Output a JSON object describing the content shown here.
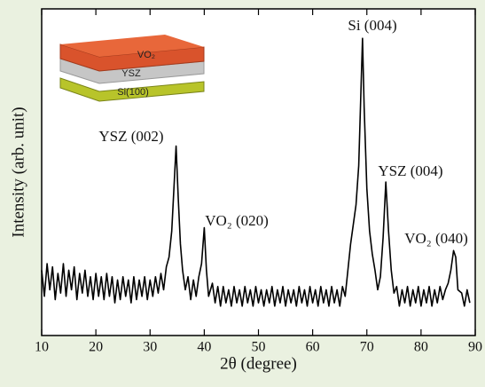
{
  "chart_data": {
    "type": "line",
    "xlabel": "2θ (degree)",
    "ylabel": "Intensity (arb. unit)",
    "xlim": [
      10,
      90
    ],
    "xticks": [
      10,
      20,
      30,
      40,
      50,
      60,
      70,
      80,
      90
    ],
    "ylim": [
      0,
      100
    ],
    "color": "#000000",
    "annotations": [
      "YSZ (002)",
      "VO₂ (020)",
      "Si (004)",
      "YSZ (004)",
      "VO₂ (040)"
    ],
    "inset": {
      "layers": [
        "VO₂",
        "YSZ",
        "Si(100)"
      ]
    },
    "x": [
      10,
      10.5,
      11,
      11.5,
      12,
      12.5,
      13,
      13.5,
      14,
      14.5,
      15,
      15.5,
      16,
      16.5,
      17,
      17.5,
      18,
      18.5,
      19,
      19.5,
      20,
      20.5,
      21,
      21.5,
      22,
      22.5,
      23,
      23.5,
      24,
      24.5,
      25,
      25.5,
      26,
      26.5,
      27,
      27.5,
      28,
      28.5,
      29,
      29.5,
      30,
      30.5,
      31,
      31.5,
      32,
      32.5,
      33,
      33.5,
      34,
      34.4,
      34.8,
      35.2,
      35.6,
      36,
      36.5,
      37,
      37.5,
      38,
      38.5,
      39,
      39.5,
      40,
      40.4,
      40.8,
      41.5,
      42,
      42.5,
      43,
      43.5,
      44,
      44.5,
      45,
      45.5,
      46,
      46.5,
      47,
      47.5,
      48,
      48.5,
      49,
      49.5,
      50,
      50.5,
      51,
      51.5,
      52,
      52.5,
      53,
      53.5,
      54,
      54.5,
      55,
      55.5,
      56,
      56.5,
      57,
      57.5,
      58,
      58.5,
      59,
      59.5,
      60,
      60.5,
      61,
      61.5,
      62,
      62.5,
      63,
      63.5,
      64,
      64.5,
      65,
      65.5,
      66,
      66.5,
      67,
      67.5,
      68,
      68.5,
      69,
      69.2,
      69.5,
      70,
      70.5,
      71,
      71.5,
      72,
      72.5,
      73,
      73.5,
      74,
      74.5,
      75,
      75.5,
      76,
      76.5,
      77,
      77.5,
      78,
      78.5,
      79,
      79.5,
      80,
      80.5,
      81,
      81.5,
      82,
      82.5,
      83,
      83.5,
      84,
      84.5,
      85,
      85.5,
      86,
      86.4,
      86.8,
      87.5,
      88,
      88.5,
      89
    ],
    "values": [
      20,
      12,
      22,
      14,
      21,
      11,
      19,
      13,
      22,
      12,
      20,
      14,
      21,
      11,
      19,
      13,
      20,
      12,
      18,
      11,
      19,
      12,
      18,
      11,
      19,
      12,
      18,
      10,
      17,
      11,
      18,
      12,
      17,
      10,
      18,
      11,
      17,
      12,
      18,
      11,
      17,
      12,
      18,
      13,
      19,
      14,
      21,
      24,
      32,
      45,
      58,
      42,
      28,
      20,
      14,
      18,
      11,
      17,
      12,
      18,
      22,
      33,
      20,
      12,
      16,
      10,
      15,
      9,
      15,
      10,
      14,
      9,
      15,
      10,
      14,
      9,
      15,
      10,
      14,
      9,
      15,
      10,
      14,
      9,
      14,
      10,
      15,
      9,
      14,
      10,
      15,
      9,
      14,
      10,
      14,
      9,
      15,
      10,
      14,
      9,
      15,
      10,
      14,
      9,
      15,
      10,
      14,
      9,
      15,
      10,
      14,
      9,
      15,
      12,
      20,
      28,
      34,
      40,
      52,
      80,
      91,
      70,
      45,
      32,
      25,
      20,
      14,
      18,
      30,
      47,
      32,
      20,
      13,
      15,
      9,
      14,
      10,
      15,
      9,
      14,
      10,
      15,
      9,
      14,
      10,
      15,
      9,
      14,
      10,
      15,
      11,
      14,
      16,
      20,
      26,
      24,
      14,
      13,
      9,
      14,
      10
    ]
  }
}
